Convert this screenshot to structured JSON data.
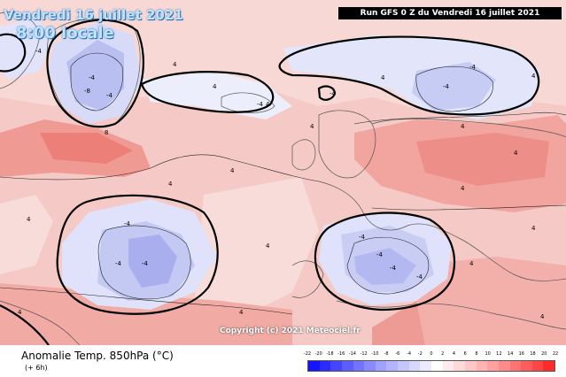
{
  "header": {
    "date_label": "Vendredi 16 juillet 2021",
    "time_label": "8:00 locale",
    "run_label": "Run GFS 0 Z du Vendredi 16 juillet 2021"
  },
  "map": {
    "copyright": "Copyright (c) 2021 Meteociel.fr",
    "contour_labels": [
      "4",
      "4",
      "4",
      "4",
      "4",
      "4",
      "4",
      "4",
      "4",
      "4",
      "4",
      "4",
      "4",
      "4",
      "4",
      "4",
      "4",
      "4",
      "-4",
      "-4",
      "-4",
      "-4",
      "-4",
      "-4",
      "-4",
      "-4",
      "-4",
      "-4",
      "-4",
      "-4",
      "8",
      "-8",
      "-4",
      "-4"
    ]
  },
  "footer": {
    "title": "Anomalie Temp. 850hPa (°C)",
    "subtitle": "(+ 6h)"
  },
  "legend": {
    "ticks": [
      "-22",
      "-20",
      "-18",
      "-16",
      "-14",
      "-12",
      "-10",
      "-8",
      "-6",
      "-4",
      "-2",
      "0",
      "2",
      "4",
      "6",
      "8",
      "10",
      "12",
      "14",
      "16",
      "18",
      "20",
      "22"
    ],
    "colors": [
      "#1414ff",
      "#2b2bff",
      "#4545ff",
      "#5c5cff",
      "#7373ff",
      "#8a8aff",
      "#a1a1ff",
      "#b3b3ff",
      "#c6c6ff",
      "#d8d8ff",
      "#ebebff",
      "#ffffff",
      "#ffebeb",
      "#ffd8d8",
      "#ffc6c6",
      "#ffb3b3",
      "#ffa1a1",
      "#ff8a8a",
      "#ff7373",
      "#ff5c5c",
      "#ff4545",
      "#ff2b2b"
    ]
  },
  "colors": {
    "warm_weak": "#f6d3d0",
    "warm_mid": "#f5b2ad",
    "warm_strong": "#f08c86",
    "cold_weak": "#e3e6fb",
    "cold_mid": "#c9cdf4",
    "cold_strong": "#9aa0ec"
  }
}
